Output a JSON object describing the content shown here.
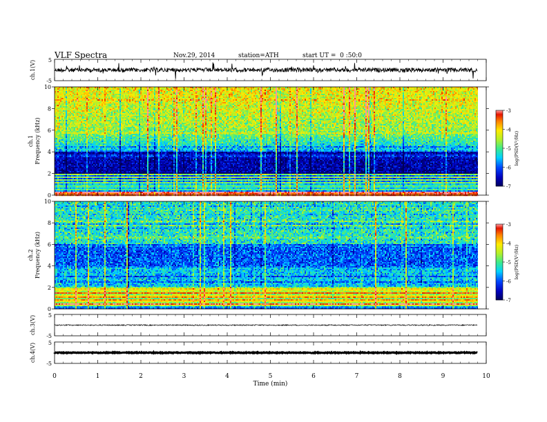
{
  "header": {
    "title": "VLF Spectra",
    "date": "Nov.29, 2014",
    "station": "station=ATH",
    "start": "start UT =  0 :50:0"
  },
  "chart_data": [
    {
      "type": "line",
      "panel": "ch1-waveform",
      "ylabel": "ch.1(V)",
      "ytick_labels": [
        "5",
        "-5"
      ],
      "ylim": [
        -5,
        5
      ],
      "x": [
        0,
        9.8
      ],
      "values": [
        0,
        0
      ],
      "color": "#000000",
      "style": "noisy, spiky"
    },
    {
      "type": "heatmap",
      "panel": "ch1-spectrogram",
      "ylabel_line1": "ch.1",
      "ylabel_line2": "Frequency (kHz)",
      "ytick_labels": [
        "0",
        "2",
        "4",
        "6",
        "8",
        "10"
      ],
      "ylim": [
        0,
        10
      ],
      "xlim": [
        0,
        9.8
      ],
      "colorbar": {
        "label": "log(PSD(V²/Hz)",
        "ticks": [
          "-3",
          "-4",
          "-5",
          "-6",
          "-7"
        ],
        "range": [
          -7,
          -3
        ]
      },
      "description": "high PSD (red/yellow) from ~4 to 10 kHz, low (blue) from 2 to 4 kHz, horizontal bands below 2 kHz"
    },
    {
      "type": "heatmap",
      "panel": "ch2-spectrogram",
      "ylabel_line1": "ch.2",
      "ylabel_line2": "Frequency (kHz)",
      "ytick_labels": [
        "0",
        "2",
        "4",
        "6",
        "8",
        "10"
      ],
      "ylim": [
        0,
        10
      ],
      "xlim": [
        0,
        9.8
      ],
      "colorbar": {
        "label": "log(PSD(V²/Hz)",
        "ticks": [
          "-3",
          "-4",
          "-5",
          "-6",
          "-7"
        ],
        "range": [
          -7,
          -3
        ]
      },
      "description": "mostly green/cyan with vertical spikes; multicolored bands below 2 kHz"
    },
    {
      "type": "line",
      "panel": "ch3-waveform",
      "ylabel": "ch.3(V)",
      "ytick_labels": [
        "5",
        "-5"
      ],
      "ylim": [
        -5,
        5
      ],
      "x": [
        0,
        9.8
      ],
      "values": [
        0,
        0
      ],
      "color": "#000000"
    },
    {
      "type": "line",
      "panel": "ch4-waveform",
      "ylabel": "ch.4(V)",
      "ytick_labels": [
        "5",
        "-5"
      ],
      "ylim": [
        -5,
        5
      ],
      "x": [
        0,
        9.8
      ],
      "values": [
        0,
        0
      ],
      "color": "#000000",
      "style": "thick flat line"
    }
  ],
  "x_axis": {
    "label": "Time (min)",
    "tick_labels": [
      "0",
      "1",
      "2",
      "3",
      "4",
      "5",
      "6",
      "7",
      "8",
      "9",
      "10"
    ],
    "range": [
      0,
      10
    ]
  }
}
